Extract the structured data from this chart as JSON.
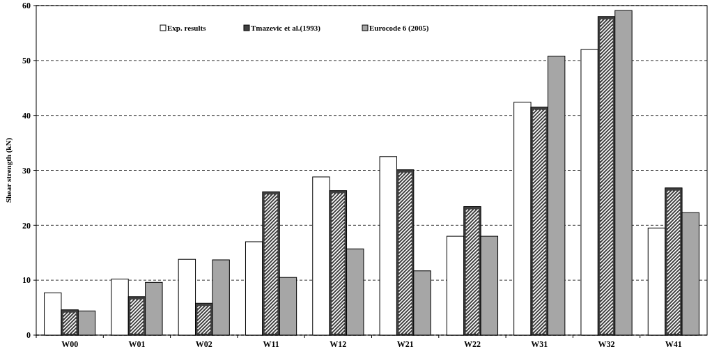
{
  "chart_data": {
    "type": "bar",
    "ylabel": "Shear strength (kN)",
    "categories": [
      "W00",
      "W01",
      "W02",
      "W11",
      "W12",
      "W21",
      "W22",
      "W31",
      "W32",
      "W41"
    ],
    "series": [
      {
        "name": "Exp. results",
        "color": "#ffffff",
        "values": [
          7.7,
          10.2,
          13.8,
          17.0,
          28.8,
          32.5,
          18.0,
          42.4,
          52.0,
          19.5
        ]
      },
      {
        "name": "Tmazevic et al.(1993)",
        "color": "#404040",
        "values": [
          4.6,
          7.0,
          5.8,
          26.1,
          26.3,
          30.1,
          23.4,
          41.5,
          58.0,
          26.8
        ]
      },
      {
        "name": "Eurocode 6 (2005)",
        "color": "#a6a6a6",
        "values": [
          4.4,
          9.6,
          13.7,
          10.5,
          15.7,
          11.7,
          18.0,
          50.8,
          59.1,
          22.3
        ]
      }
    ],
    "ylim": [
      0,
      60
    ],
    "yticks": [
      0,
      10,
      20,
      30,
      40,
      50,
      60
    ],
    "grid": "y",
    "legend": "top left"
  }
}
